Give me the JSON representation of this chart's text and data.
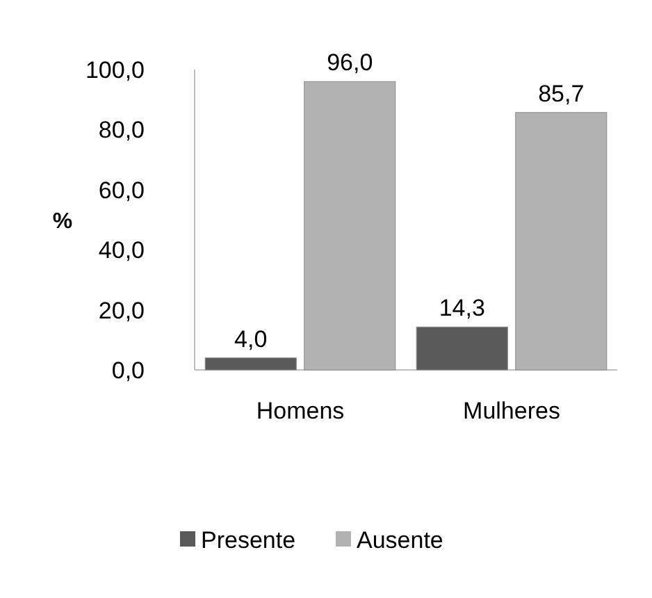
{
  "chart_data": {
    "type": "bar",
    "ylabel": "%",
    "categories": [
      "Homens",
      "Mulheres"
    ],
    "series": [
      {
        "name": "Presente",
        "color": "#595959",
        "values": [
          4.0,
          14.3
        ],
        "value_labels": [
          "4,0",
          "14,3"
        ]
      },
      {
        "name": "Ausente",
        "color": "#b2b2b2",
        "values": [
          96.0,
          85.7
        ],
        "value_labels": [
          "96,0",
          "85,7"
        ]
      }
    ],
    "ylim": [
      0,
      100
    ],
    "yticks": [
      {
        "value": 0,
        "label": "0,0"
      },
      {
        "value": 20,
        "label": "20,0"
      },
      {
        "value": 40,
        "label": "40,0"
      },
      {
        "value": 60,
        "label": "60,0"
      },
      {
        "value": 80,
        "label": "80,0"
      },
      {
        "value": 100,
        "label": "100,0"
      }
    ],
    "grid": false,
    "legend": "bottom"
  }
}
